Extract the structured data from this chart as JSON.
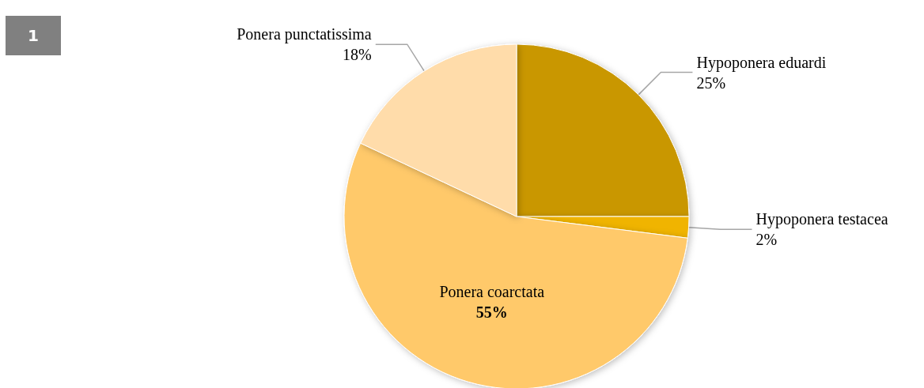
{
  "chart_data": {
    "type": "pie",
    "categories": [
      "Hypoponera eduardi",
      "Hypoponera testacea",
      "Ponera coarctata",
      "Ponera punctatissima"
    ],
    "values": [
      25,
      2,
      55,
      18
    ],
    "value_labels": [
      "25%",
      "2%",
      "55%",
      "18%"
    ],
    "colors": [
      "#c99700",
      "#f0b400",
      "#ffc96b",
      "#ffdcaa"
    ],
    "annotations": [
      "1"
    ],
    "legend": false
  }
}
